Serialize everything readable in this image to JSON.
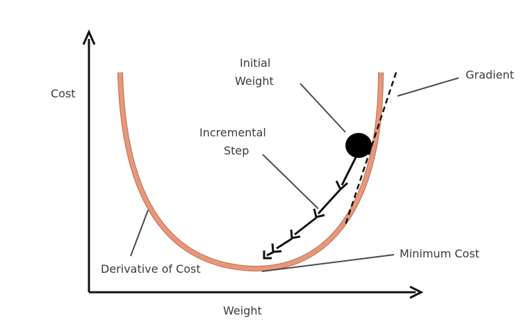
{
  "labels": {
    "y_axis": "Cost",
    "x_axis": "Weight",
    "initial_weight_line1": "Initial",
    "initial_weight_line2": "Weight",
    "incremental_step_line1": "Incremental",
    "incremental_step_line2": "Step",
    "gradient": "Gradient",
    "minimum_cost": "Minimum Cost",
    "derivative_of_cost": "Derivative of Cost"
  },
  "colors": {
    "curve": "#e8987a",
    "curve_edge": "#b86a50",
    "axis": "#111111",
    "text": "#3a3a3a",
    "ball": "#000000",
    "step_arrow": "#111111"
  }
}
